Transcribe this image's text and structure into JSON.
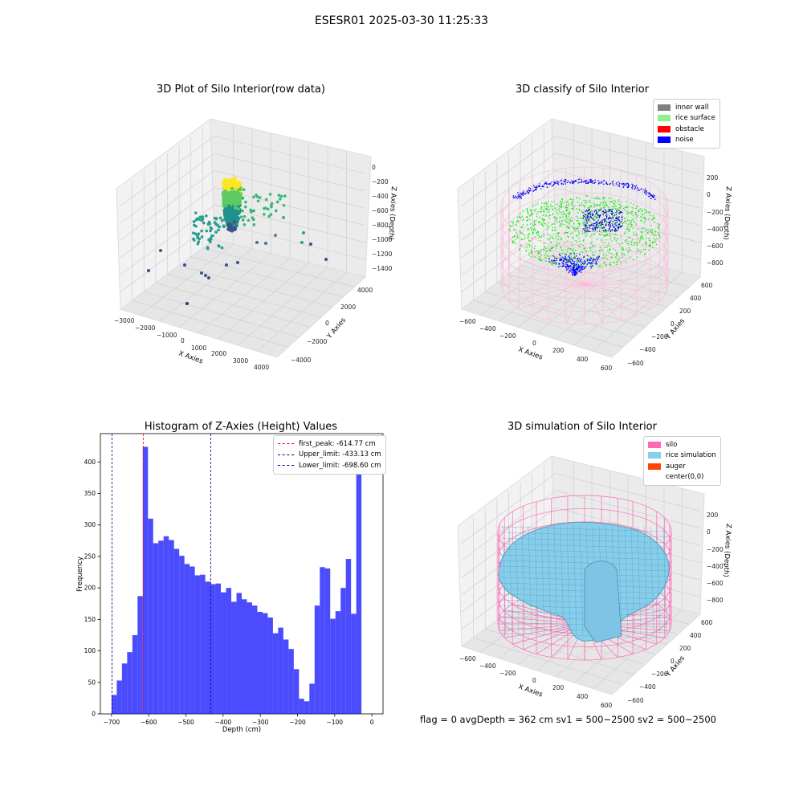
{
  "figure": {
    "suptitle": "ESESR01 2025-03-30 11:25:33",
    "status": "flag = 0     avgDepth = 362 cm  sv1 = 500~2500  sv2 = 500~2500"
  },
  "chart_data": [
    {
      "type": "scatter",
      "title": "3D Plot of Silo Interior(row data)",
      "xlabel": "X Axies",
      "ylabel": "Y Axies",
      "zlabel": "Z Axies (Depth)",
      "x_ticks": [
        "−3000",
        "−2000",
        "−1000",
        "0",
        "1000",
        "2000",
        "3000",
        "4000"
      ],
      "y_ticks": [
        "−4000",
        "−2000",
        "0",
        "2000",
        "4000"
      ],
      "z_ticks": [
        "−1400",
        "−1200",
        "−1000",
        "−800",
        "−600",
        "−400",
        "−200",
        "0"
      ],
      "xlim": [
        -3000,
        4000
      ],
      "ylim": [
        -4000,
        4000
      ],
      "zlim": [
        -1400,
        0
      ],
      "colormap": "viridis",
      "grid": true
    },
    {
      "type": "scatter",
      "title": "3D classify of Silo Interior",
      "zlabel": "Z Axies (Depth)",
      "xlabel": "X Axies",
      "ylabel": "Y Axies",
      "x_ticks": [
        "−600",
        "−400",
        "−200",
        "0",
        "200",
        "400",
        "600"
      ],
      "y_ticks": [
        "−600",
        "−400",
        "−200",
        "0",
        "200",
        "400",
        "600"
      ],
      "z_ticks": [
        "−800",
        "−600",
        "−400",
        "−200",
        "0",
        "200"
      ],
      "xlim": [
        -600,
        600
      ],
      "ylim": [
        -600,
        600
      ],
      "zlim": [
        -800,
        200
      ],
      "legend": [
        {
          "label": "inner wall",
          "color": "#808080"
        },
        {
          "label": "rice surface",
          "color": "#90ee90"
        },
        {
          "label": "obstacle",
          "color": "#ff0000"
        },
        {
          "label": "noise",
          "color": "#0000ff"
        }
      ],
      "legend_position": "top-right",
      "grid": true
    },
    {
      "type": "bar",
      "title": "Histogram of Z-Axies (Height) Values",
      "xlabel": "Depth (cm)",
      "ylabel": "Frequency",
      "xlim": [
        -730,
        30
      ],
      "ylim": [
        0,
        445
      ],
      "x_ticks": [
        -700,
        -600,
        -500,
        -400,
        -300,
        -200,
        -100,
        0
      ],
      "y_ticks": [
        0,
        50,
        100,
        150,
        200,
        250,
        300,
        350,
        400
      ],
      "bin_start": -700,
      "bin_width": 14,
      "values": [
        30,
        53,
        80,
        98,
        125,
        187,
        424,
        310,
        271,
        275,
        282,
        276,
        262,
        251,
        238,
        234,
        220,
        221,
        210,
        206,
        207,
        193,
        200,
        178,
        192,
        182,
        177,
        172,
        162,
        160,
        153,
        128,
        137,
        118,
        103,
        71,
        24,
        20,
        48,
        172,
        233,
        231,
        151,
        163,
        200,
        246,
        159,
        421
      ],
      "bar_color": "#0000ff",
      "vlines": [
        {
          "label": "first_peak: -614.77 cm",
          "x": -614.77,
          "color": "#ff0000"
        },
        {
          "label": "Upper_limit: -433.13 cm",
          "x": -433.13,
          "color": "#00008b"
        },
        {
          "label": "Lower_limit: -698.60 cm",
          "x": -698.6,
          "color": "#00008b"
        }
      ],
      "legend_position": "top-right"
    },
    {
      "type": "surface",
      "title": "3D simulation of Silo Interior",
      "xlabel": "X Axies",
      "ylabel": "Y Axies",
      "zlabel": "Z Axies (Depth)",
      "x_ticks": [
        "−600",
        "−400",
        "−200",
        "0",
        "200",
        "400",
        "600"
      ],
      "y_ticks": [
        "−600",
        "−400",
        "−200",
        "0",
        "200",
        "400",
        "600"
      ],
      "z_ticks": [
        "−800",
        "−600",
        "−400",
        "−200",
        "0",
        "200"
      ],
      "xlim": [
        -600,
        600
      ],
      "ylim": [
        -600,
        600
      ],
      "zlim": [
        -800,
        200
      ],
      "legend": [
        {
          "label": "silo",
          "color": "#ff69b4"
        },
        {
          "label": "rice simulation",
          "color": "#87ceeb"
        },
        {
          "label": "auger",
          "color": "#ff4500"
        },
        {
          "label": "center(0,0)",
          "color": "#ffffff"
        }
      ],
      "legend_position": "top-right",
      "grid": true
    }
  ]
}
